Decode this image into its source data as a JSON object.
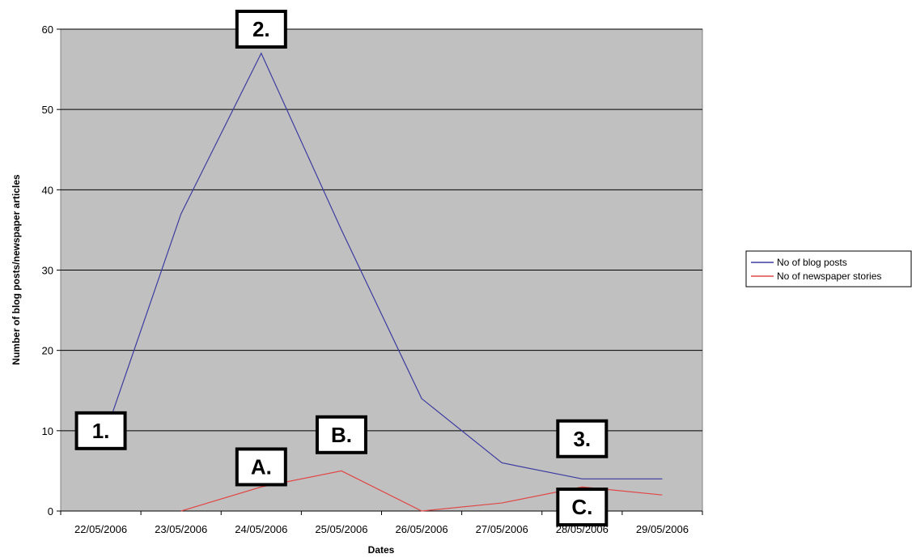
{
  "chart_data": {
    "type": "line",
    "categories": [
      "22/05/2006",
      "23/05/2006",
      "24/05/2006",
      "25/05/2006",
      "26/05/2006",
      "27/05/2006",
      "28/05/2006",
      "29/05/2006"
    ],
    "series": [
      {
        "name": "No of blog posts",
        "color": "#3c3ca0",
        "values": [
          8,
          37,
          57,
          35,
          14,
          6,
          4,
          4
        ]
      },
      {
        "name": "No of newspaper stories",
        "color": "#e04848",
        "values": [
          null,
          0,
          3,
          5,
          0,
          1,
          3,
          2
        ]
      }
    ],
    "xlabel": "Dates",
    "ylabel": "Number of blog posts/newspaper articles",
    "ylim": [
      0,
      60
    ],
    "yticks": [
      0,
      10,
      20,
      30,
      40,
      50,
      60
    ],
    "grid": true,
    "plot_background": "#c0c0c0",
    "legend": "right",
    "annotations": [
      {
        "label": "1.",
        "category": "22/05/2006",
        "value": 10
      },
      {
        "label": "2.",
        "category": "24/05/2006",
        "value": 60
      },
      {
        "label": "3.",
        "category": "28/05/2006",
        "value": 9
      },
      {
        "label": "A.",
        "category": "24/05/2006",
        "value": 5.5
      },
      {
        "label": "B.",
        "category": "25/05/2006",
        "value": 9.5
      },
      {
        "label": "C.",
        "category": "28/05/2006",
        "value": 0.5
      }
    ]
  }
}
